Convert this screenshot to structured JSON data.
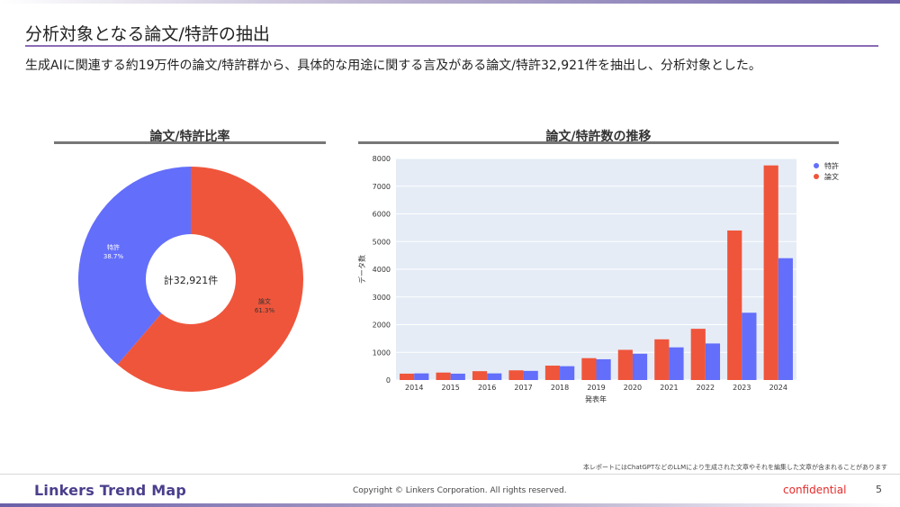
{
  "header": {
    "title": "分析対象となる論文/特許の抽出",
    "subtitle": "生成AIに関連する約19万件の論文/特許群から、具体的な用途に関する言及がある論文/特許32,921件を抽出し、分析対象とした。"
  },
  "chart_data": [
    {
      "type": "pie",
      "title": "論文/特許比率",
      "center_label": "計32,921件",
      "slices": [
        {
          "label": "特許",
          "percent_label": "38.7%",
          "value": 38.7,
          "color": "#636efa"
        },
        {
          "label": "論文",
          "percent_label": "61.3%",
          "value": 61.3,
          "color": "#ef553b"
        }
      ]
    },
    {
      "type": "bar",
      "title": "論文/特許数の推移",
      "xlabel": "発表年",
      "ylabel": "データ数",
      "ylim": [
        0,
        8000
      ],
      "yticks": [
        "0",
        "1000",
        "2000",
        "3000",
        "4000",
        "5000",
        "6000",
        "7000",
        "8000"
      ],
      "categories": [
        "2014",
        "2015",
        "2016",
        "2017",
        "2018",
        "2019",
        "2020",
        "2021",
        "2022",
        "2023",
        "2024"
      ],
      "series": [
        {
          "name": "論文",
          "color": "#ef553b",
          "values": [
            230,
            270,
            320,
            350,
            520,
            790,
            1090,
            1470,
            1850,
            5400,
            7750
          ]
        },
        {
          "name": "特許",
          "color": "#636efa",
          "values": [
            240,
            230,
            240,
            330,
            500,
            750,
            950,
            1180,
            1320,
            2430,
            4400
          ]
        }
      ],
      "legend": [
        {
          "label": "特許",
          "color": "#636efa"
        },
        {
          "label": "論文",
          "color": "#ef553b"
        }
      ]
    }
  ],
  "footer": {
    "disclaimer": "本レポートにはChatGPTなどのLLMにより生成された文章やそれを編集した文章が含まれることがあります",
    "logo": "Linkers Trend Map",
    "copyright": "Copyright © Linkers Corporation. All rights reserved.",
    "confidential": "confidential",
    "page_number": "5"
  }
}
